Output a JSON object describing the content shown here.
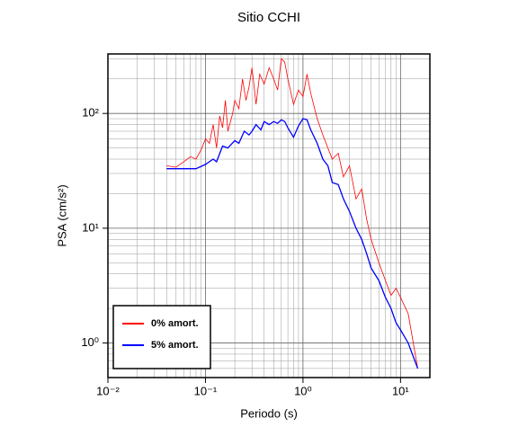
{
  "chart_data": {
    "type": "line",
    "title": "Sitio CCHI",
    "xlabel": "Periodo (s)",
    "ylabel": "PSA (cm/s²)",
    "xscale": "log",
    "yscale": "log",
    "grid": true,
    "legend": "lower left",
    "xlim": [
      0.01,
      20
    ],
    "ylim": [
      0.5,
      330
    ],
    "xticks": [
      {
        "value": 0.01,
        "label": "10⁻²"
      },
      {
        "value": 0.1,
        "label": "10⁻¹"
      },
      {
        "value": 1,
        "label": "10⁰"
      },
      {
        "value": 10,
        "label": "10¹"
      }
    ],
    "yticks": [
      {
        "value": 1,
        "label": "10⁰"
      },
      {
        "value": 10,
        "label": "10¹"
      },
      {
        "value": 100,
        "label": "10²"
      }
    ],
    "xminor": [
      0.02,
      0.03,
      0.04,
      0.05,
      0.06,
      0.07,
      0.08,
      0.09,
      0.2,
      0.3,
      0.4,
      0.5,
      0.6,
      0.7,
      0.8,
      0.9,
      2,
      3,
      4,
      5,
      6,
      7,
      8,
      9
    ],
    "yminor": [
      0.6,
      0.7,
      0.8,
      0.9,
      2,
      3,
      4,
      5,
      6,
      7,
      8,
      9,
      20,
      30,
      40,
      50,
      60,
      70,
      80,
      90,
      200,
      300
    ],
    "series": [
      {
        "name": "0% amort.",
        "color": "#ff0000",
        "width": 0.8,
        "x": [
          0.04,
          0.05,
          0.06,
          0.07,
          0.08,
          0.09,
          0.1,
          0.11,
          0.12,
          0.13,
          0.14,
          0.15,
          0.16,
          0.17,
          0.19,
          0.2,
          0.22,
          0.24,
          0.26,
          0.28,
          0.3,
          0.33,
          0.36,
          0.4,
          0.45,
          0.5,
          0.55,
          0.6,
          0.65,
          0.7,
          0.8,
          0.9,
          1.0,
          1.1,
          1.2,
          1.4,
          1.6,
          1.8,
          2.0,
          2.3,
          2.6,
          3,
          3.5,
          4,
          4.5,
          5,
          6,
          7,
          8,
          9,
          10,
          12,
          15
        ],
        "values": [
          35,
          34,
          38,
          42,
          40,
          48,
          60,
          55,
          80,
          50,
          95,
          75,
          130,
          70,
          100,
          130,
          110,
          200,
          130,
          170,
          250,
          120,
          220,
          180,
          250,
          200,
          160,
          300,
          280,
          200,
          120,
          160,
          140,
          220,
          150,
          90,
          65,
          50,
          40,
          45,
          28,
          35,
          18,
          22,
          12,
          8,
          5,
          3.5,
          2.6,
          3,
          2.5,
          1.8,
          0.6
        ]
      },
      {
        "name": "5% amort.",
        "color": "#0000ff",
        "width": 1.3,
        "x": [
          0.04,
          0.08,
          0.1,
          0.12,
          0.13,
          0.15,
          0.17,
          0.2,
          0.22,
          0.25,
          0.28,
          0.3,
          0.33,
          0.37,
          0.4,
          0.45,
          0.5,
          0.55,
          0.6,
          0.65,
          0.7,
          0.8,
          0.9,
          1.0,
          1.1,
          1.2,
          1.4,
          1.6,
          1.8,
          2.0,
          2.3,
          2.6,
          3,
          3.5,
          4,
          4.5,
          5,
          6,
          7,
          8,
          9,
          10,
          12,
          15
        ],
        "values": [
          33,
          33,
          36,
          40,
          38,
          52,
          50,
          58,
          55,
          70,
          65,
          70,
          80,
          72,
          85,
          80,
          85,
          82,
          88,
          85,
          75,
          62,
          78,
          90,
          88,
          72,
          55,
          40,
          35,
          25,
          24,
          18,
          14,
          10,
          8,
          6,
          4.5,
          3.5,
          2.5,
          2,
          1.5,
          1.3,
          1,
          0.6
        ]
      }
    ]
  }
}
